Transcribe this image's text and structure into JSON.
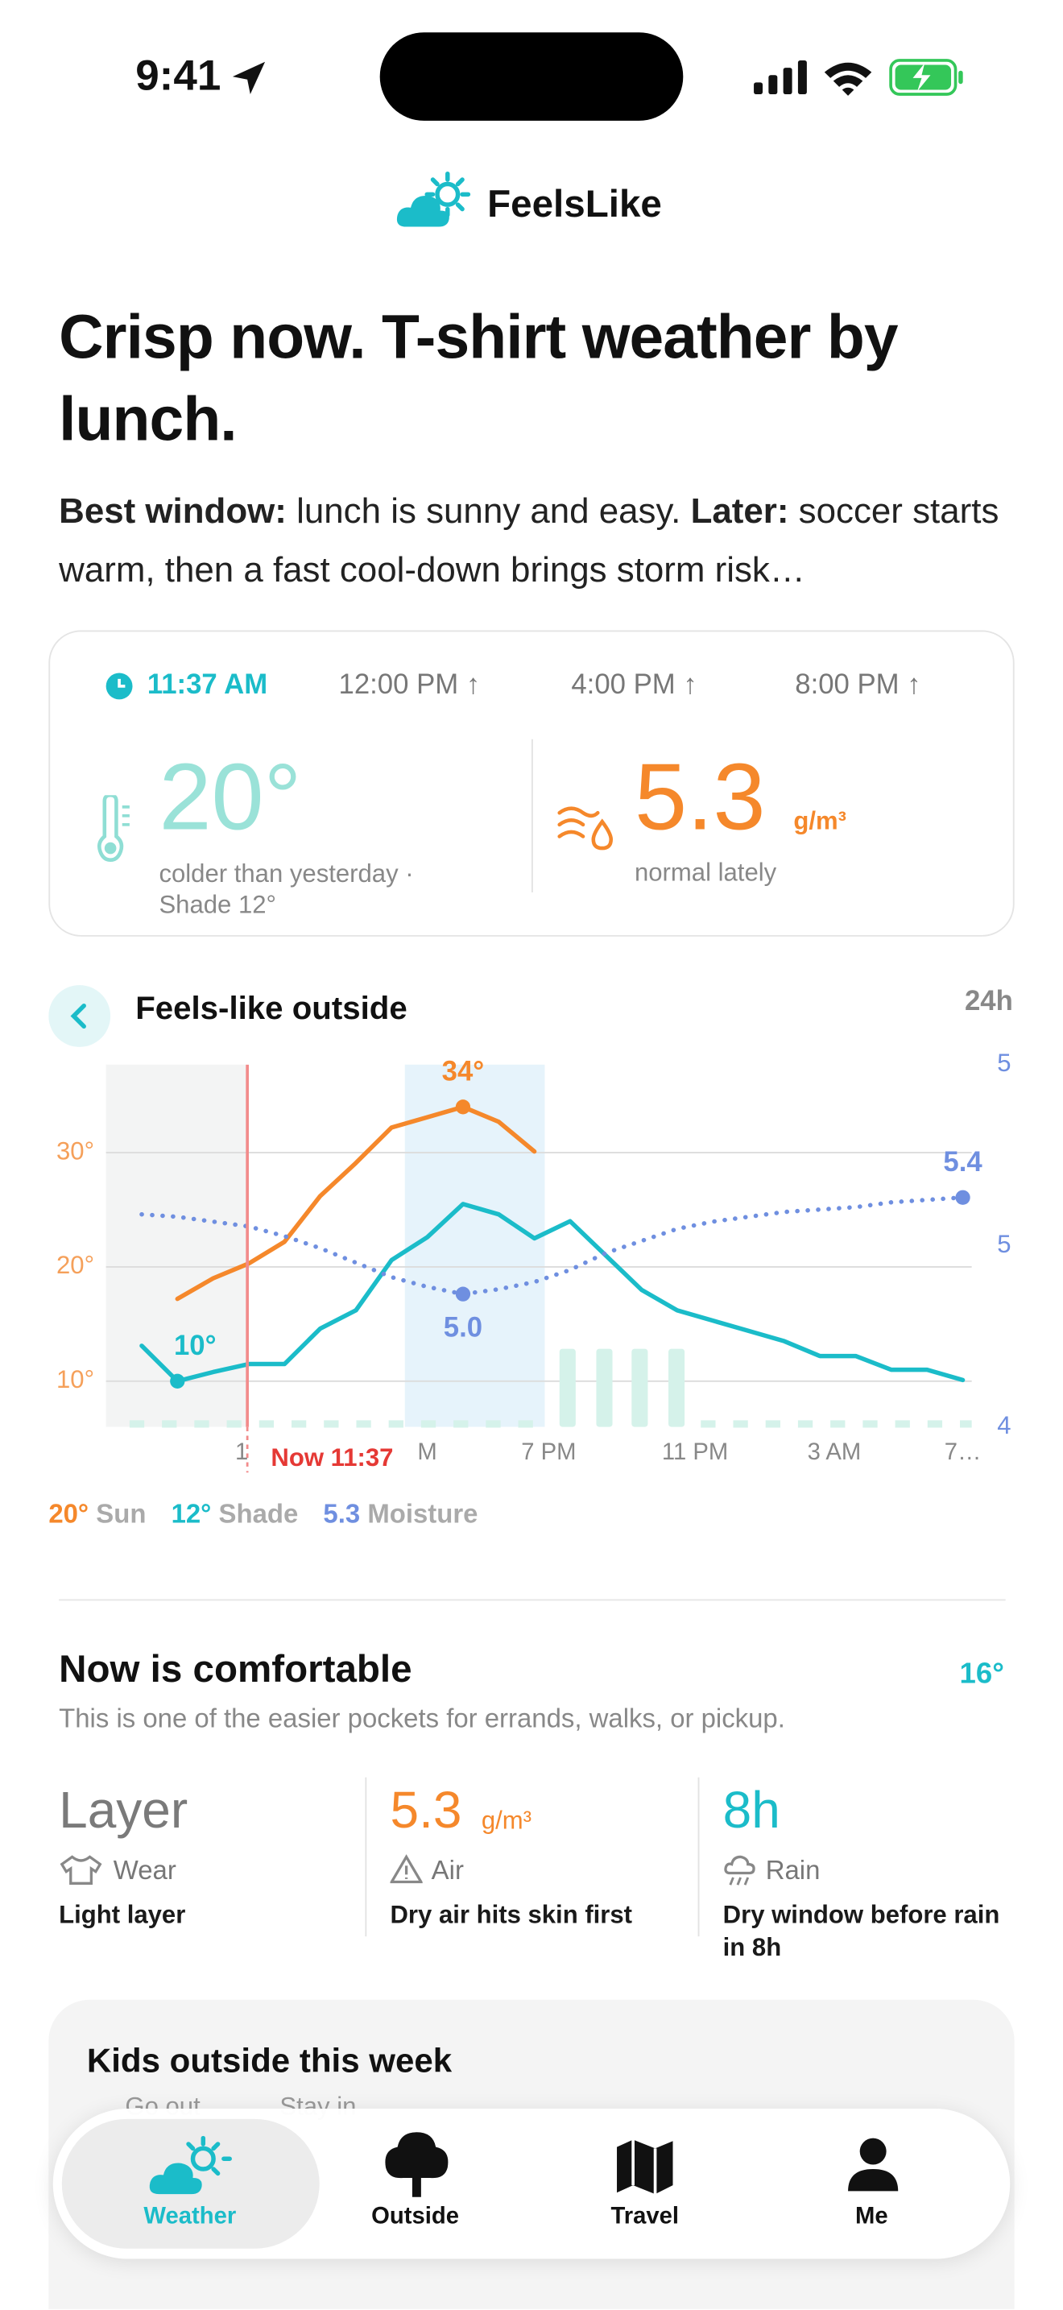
{
  "status_bar": {
    "time": "9:41"
  },
  "app": {
    "name": "FeelsLike"
  },
  "headline": {
    "title": "Crisp now. T-shirt weather by lunch.",
    "summary": {
      "best_label": "Best window:",
      "best_text": "lunch is sunny and easy.",
      "later_label": "Later:",
      "later_text": "soccer starts warm, then a fast cool-down brings storm risk…"
    }
  },
  "now_card": {
    "times": [
      "11:37 AM",
      "12:00 PM ↑",
      "4:00 PM ↑",
      "8:00 PM ↑"
    ],
    "temp": "20°",
    "temp_note": "colder than yesterday · Shade 12°",
    "moisture": "5.3",
    "moisture_unit": "g/m³",
    "moisture_note": "normal lately"
  },
  "chart": {
    "type": "line",
    "title": "Feels-like outside",
    "range_label": "24h",
    "now_label": "Now 11:37",
    "x": [
      0,
      1,
      2,
      3,
      4,
      5,
      6,
      7,
      8,
      9,
      10,
      11,
      12,
      13,
      14,
      15,
      16,
      17,
      18,
      19,
      20,
      21,
      22,
      23
    ],
    "xlim": [
      -1,
      23.25
    ],
    "xticks": [
      {
        "value": 2.8,
        "label": "1"
      },
      {
        "value": 8,
        "label": "M"
      },
      {
        "value": 11.4,
        "label": "7 PM"
      },
      {
        "value": 15.5,
        "label": "11 PM"
      },
      {
        "value": 19.4,
        "label": "3 AM"
      },
      {
        "value": 23,
        "label": "7…"
      }
    ],
    "ylim": [
      6,
      37.7
    ],
    "yticks": [
      {
        "value": 10,
        "label": "10°"
      },
      {
        "value": 20,
        "label": "20°"
      },
      {
        "value": 30,
        "label": "30°"
      }
    ],
    "y2lim": [
      4.45,
      5.95
    ],
    "y2ticks": [
      {
        "value": 4.45,
        "label": "4"
      },
      {
        "value": 5.2,
        "label": "5"
      },
      {
        "value": 5.95,
        "label": "5"
      }
    ],
    "grid": true,
    "series": [
      {
        "name": "Sun",
        "color": "#f5882b",
        "values": [
          null,
          17.2,
          19.0,
          20.3,
          22.2,
          26.2,
          29.1,
          32.2,
          33.1,
          34,
          32.7,
          30.1,
          null,
          null,
          null,
          null,
          null,
          null,
          null,
          null,
          null,
          null,
          null,
          null
        ],
        "value_labels": [
          null,
          null,
          null,
          null,
          null,
          null,
          null,
          null,
          null,
          "34°",
          null,
          null,
          null,
          null,
          null,
          null,
          null,
          null,
          null,
          null,
          null,
          null,
          null,
          null
        ]
      },
      {
        "name": "Shade",
        "color": "#1bbcc9",
        "values": [
          13.1,
          10,
          10.8,
          11.5,
          11.5,
          14.6,
          16.2,
          20.6,
          22.6,
          25.5,
          24.6,
          22.5,
          24.0,
          21.0,
          18.0,
          16.2,
          15.3,
          14.4,
          13.5,
          12.2,
          12.2,
          11.0,
          11.0,
          10.1
        ],
        "value_labels": [
          null,
          "10°",
          null,
          null,
          null,
          null,
          null,
          null,
          null,
          null,
          null,
          null,
          null,
          null,
          null,
          null,
          null,
          null,
          null,
          null,
          null,
          null,
          null,
          null
        ]
      },
      {
        "name": "Moisture",
        "color": "#6f8fe0",
        "axis": "y2",
        "line_style": "dotted",
        "values": [
          5.33,
          5.32,
          5.3,
          5.28,
          5.24,
          5.19,
          5.13,
          5.07,
          5.03,
          5.0,
          5.02,
          5.05,
          5.1,
          5.17,
          5.22,
          5.27,
          5.3,
          5.32,
          5.34,
          5.35,
          5.36,
          5.38,
          5.39,
          5.4
        ],
        "value_labels": [
          null,
          null,
          null,
          null,
          null,
          null,
          null,
          null,
          null,
          "5.0",
          null,
          null,
          null,
          null,
          null,
          null,
          null,
          null,
          null,
          null,
          null,
          null,
          null,
          "5.4"
        ]
      }
    ],
    "legend_values": [
      "20°",
      "12°",
      "5.3"
    ]
  },
  "comfort": {
    "title": "Now is comfortable",
    "score": "16°",
    "subtitle": "This is one of the easier pockets for errands, walks, or pickup.",
    "stats": [
      {
        "value": "Layer",
        "label": "Wear",
        "detail": "Light layer"
      },
      {
        "value": "5.3",
        "unit": "g/m³",
        "label": "Air",
        "detail": "Dry air hits skin first"
      },
      {
        "value": "8h",
        "label": "Rain",
        "detail": "Dry window before rain in 8h"
      }
    ]
  },
  "week": {
    "title": "Kids outside this week",
    "legend": [
      "Go out",
      "Stay in"
    ]
  },
  "tab_bar": {
    "tabs": [
      "Weather",
      "Outside",
      "Travel",
      "Me"
    ]
  }
}
